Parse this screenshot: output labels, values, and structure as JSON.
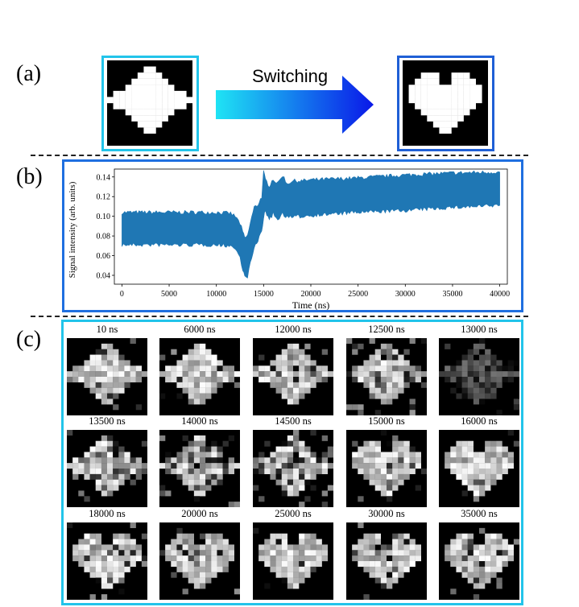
{
  "panels": {
    "a": {
      "label": "(a)",
      "arrow_text": "Switching",
      "start_frame_color": "#22c4ea",
      "end_frame_color": "#1f5fd6",
      "start_pattern": "star",
      "end_pattern": "heart"
    },
    "b": {
      "label": "(b)"
    },
    "c": {
      "label": "(c)"
    }
  },
  "arrow_gradient": [
    "#1fe4f4",
    "#0a18e8"
  ],
  "chart_data": {
    "type": "area",
    "xlabel": "Time (ns)",
    "ylabel": "Signal intensity (arb. units)",
    "xlim": [
      -800,
      40800
    ],
    "ylim": [
      0.031,
      0.148
    ],
    "xticks": [
      0,
      5000,
      10000,
      15000,
      20000,
      25000,
      30000,
      35000,
      40000
    ],
    "yticks": [
      0.04,
      0.06,
      0.08,
      0.1,
      0.12,
      0.14
    ],
    "ytick_labels": [
      "0.04",
      "0.06",
      "0.08",
      "0.10",
      "0.12",
      "0.14"
    ],
    "grid": false,
    "color": "#1f77b4",
    "series": [
      {
        "x": [
          0,
          5000,
          10000,
          11500,
          12000,
          12500,
          12800,
          13000,
          13300,
          13600,
          14000,
          14400,
          14800,
          15000,
          15200,
          15600,
          16000,
          16500,
          17000,
          17500,
          18000,
          19000,
          20000,
          25000,
          30000,
          35000,
          40000
        ],
        "upper": [
          0.104,
          0.104,
          0.104,
          0.103,
          0.1,
          0.093,
          0.084,
          0.078,
          0.08,
          0.094,
          0.109,
          0.112,
          0.12,
          0.145,
          0.137,
          0.131,
          0.138,
          0.133,
          0.142,
          0.133,
          0.136,
          0.136,
          0.137,
          0.139,
          0.142,
          0.144,
          0.145
        ],
        "lower": [
          0.071,
          0.071,
          0.071,
          0.07,
          0.067,
          0.058,
          0.046,
          0.038,
          0.039,
          0.052,
          0.067,
          0.075,
          0.086,
          0.098,
          0.106,
          0.095,
          0.103,
          0.096,
          0.103,
          0.099,
          0.099,
          0.1,
          0.101,
          0.104,
          0.106,
          0.109,
          0.111
        ]
      }
    ]
  },
  "snapshots": [
    {
      "label": "10 ns",
      "pattern": "star"
    },
    {
      "label": "6000 ns",
      "pattern": "star"
    },
    {
      "label": "12000 ns",
      "pattern": "star"
    },
    {
      "label": "12500 ns",
      "pattern": "star"
    },
    {
      "label": "13000 ns",
      "pattern": "star"
    },
    {
      "label": "13500 ns",
      "pattern": "star"
    },
    {
      "label": "14000 ns",
      "pattern": "star"
    },
    {
      "label": "14500 ns",
      "pattern": "star"
    },
    {
      "label": "15000 ns",
      "pattern": "heart"
    },
    {
      "label": "16000 ns",
      "pattern": "heart"
    },
    {
      "label": "18000 ns",
      "pattern": "heart"
    },
    {
      "label": "20000 ns",
      "pattern": "heart"
    },
    {
      "label": "25000 ns",
      "pattern": "heart"
    },
    {
      "label": "30000 ns",
      "pattern": "heart"
    },
    {
      "label": "35000 ns",
      "pattern": "heart"
    }
  ]
}
